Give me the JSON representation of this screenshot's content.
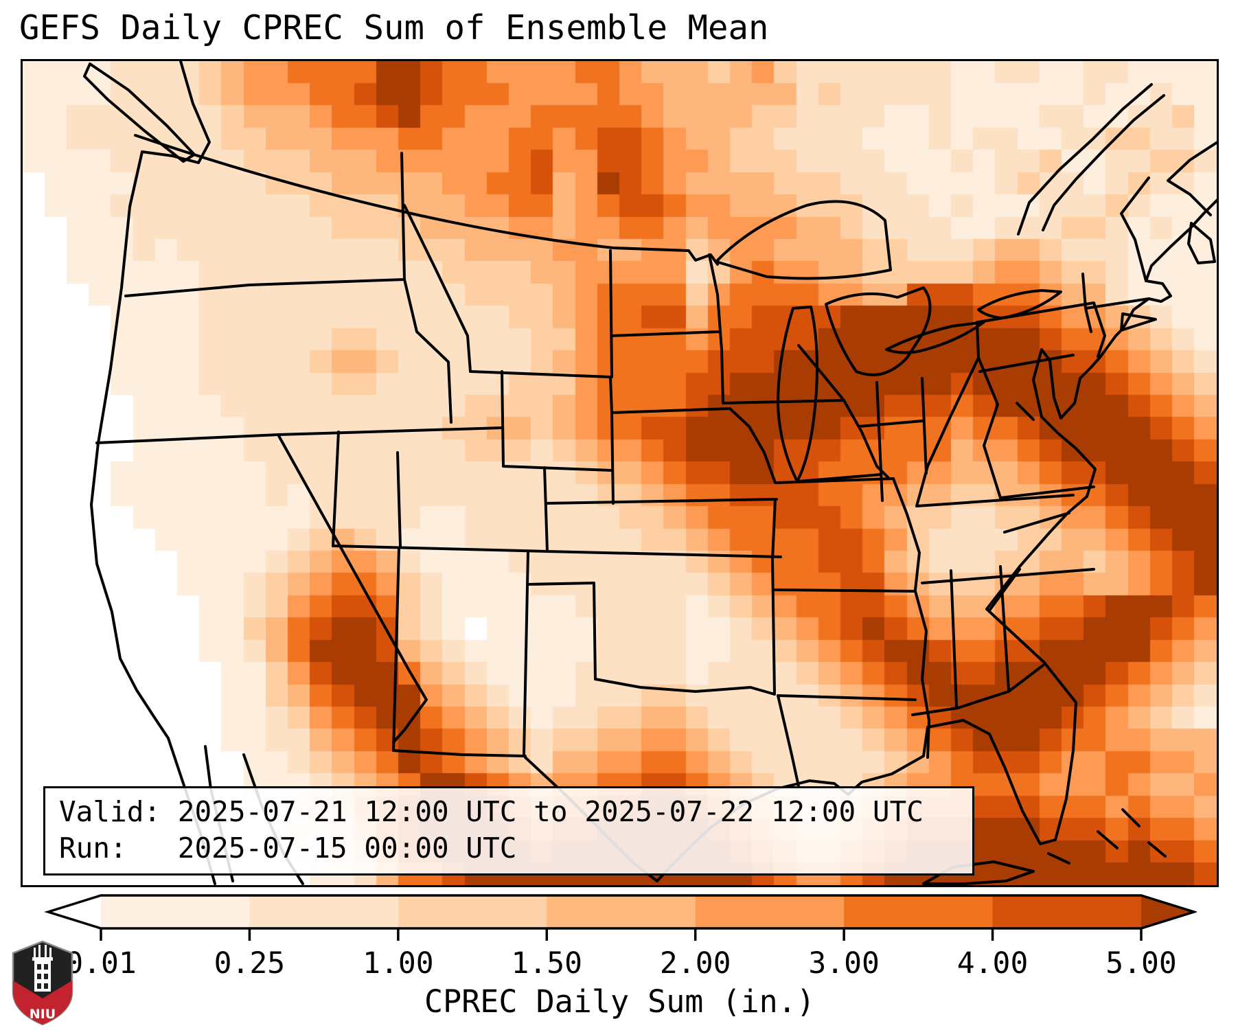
{
  "title": "GEFS Daily CPREC Sum of Ensemble Mean",
  "info_box": {
    "valid_line": "Valid: 2025-07-21 12:00 UTC to 2025-07-22 12:00 UTC",
    "run_line": "Run:   2025-07-15 00:00 UTC"
  },
  "colorbar": {
    "xlabel": "CPREC Daily Sum (in.)",
    "tick_labels": [
      "0.01",
      "0.25",
      "1.00",
      "1.50",
      "2.00",
      "3.00",
      "4.00",
      "5.00"
    ],
    "segment_colors": [
      "#fdf0e2",
      "#fde3c8",
      "#fdd2a9",
      "#fdb97e",
      "#fd9a53",
      "#f1731f",
      "#d6520a"
    ],
    "under_color": "#ffffff",
    "over_color": "#a83c03",
    "outline_color": "#000000"
  },
  "logo": {
    "text": "NIU",
    "shield_color": "#212121",
    "accent_color": "#c2232e"
  },
  "map_grid": {
    "palette": [
      "#ffffff",
      "#feeedd",
      "#fde1c4",
      "#fdcfa3",
      "#fdb77d",
      "#fd9a53",
      "#f1731f",
      "#d6520a",
      "#a83c03"
    ],
    "rows": [
      "111122223455666688766555566544434532222222112211221111",
      "111122223455566788766655556554444442322222111111211211",
      "112222222344456678665556666654444332222112111122112231",
      "112222222334445556655566567765443322221112122112233221",
      "111122222233344455555567557765543332222111212231122332",
      "011112222223334444455667458765444433322211112322123221",
      "011122222222233334445566456776554443332221211122232111",
      "001112222222223333444455455665455554432222112223321211",
      "001112122222222223334444554455345544443322234432221111",
      "001111112222222222233334455555235655443333345543321111",
      "000111112222222222223333456666356666554477766654421111",
      "000011112222222222222233456677466777788888877765543211",
      "000011112222223322222223356666567777888888888876654321",
      "000011112222234432222223456666677788888888888887765432",
      "000011112222223322222233356666778888888888788888876543",
      "000001111222222222223333456666788888888777678888887654",
      "000001111122222222233443456677888888877666566788888765",
      "000001111122222222223332345567888877766666455678888876",
      "000011111112222222222222234456778877666655444567788887",
      "000011111112122222222222223345667777665544334456678888",
      "000001111111122222112222222334566677765433223345567888",
      "000000111111234321112222222233456666776532222334456788",
      "000000011112345542111122222222345666776432223344345678",
      "000000011123456653211112222222234566677543334455445678",
      "000000001123567763211111122222123456677654445566788876",
      "000000001134678873210111112222112345678765556677888765",
      "000000001124688874321111112222112234567887667788888654",
      "000000000113578886432111122222122223456788778888876543",
      "000000000113467888543211122233222222345678888888765432",
      "000000000112356788654321223344322222234567888887654321",
      "000000000112245678765432334455432222223456788876655444",
      "000000000011234568765432445566543222222345677765566554",
      "000000000011123456887654556677654322223455666655565445",
      "000000000001123567888765667788765432234566677766656554",
      "000000000001112467888876778888876543345677788877767665",
      "000000000000112357788887888888887654456788888888878776",
      "000000000000011246678888888888888765567888888888888887"
    ]
  }
}
